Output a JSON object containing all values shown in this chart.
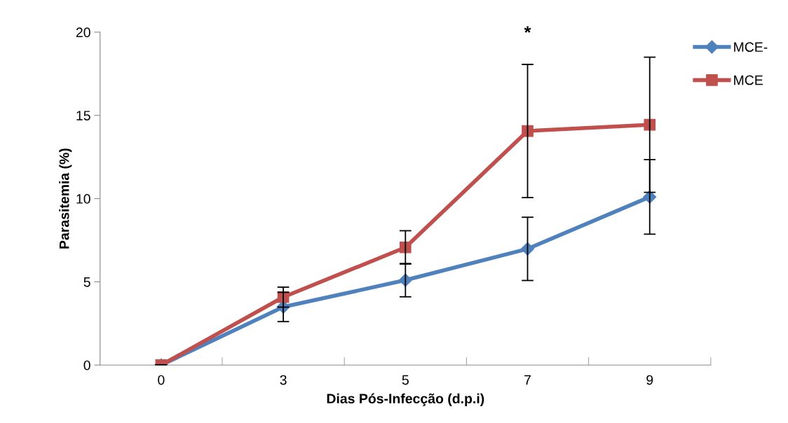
{
  "chart_data": {
    "type": "line",
    "xlabel": "Dias Pós-Infecção (d.p.i)",
    "ylabel": "Parasitemia (%)",
    "categories": [
      "0",
      "3",
      "5",
      "7",
      "9"
    ],
    "series": [
      {
        "name": "MCE-",
        "color": "#4f81bd",
        "marker": "diamond",
        "values": [
          0,
          3.49,
          5.1,
          6.98,
          10.1
        ],
        "errors": [
          0,
          0.88,
          1.0,
          1.9,
          2.24
        ]
      },
      {
        "name": "MCE",
        "color": "#c0504d",
        "marker": "square",
        "values": [
          0,
          4.08,
          7.07,
          14.06,
          14.44
        ],
        "errors": [
          0,
          0.6,
          1.0,
          4.0,
          4.06
        ]
      }
    ],
    "ylim": [
      0,
      20
    ],
    "yticks": [
      0,
      5,
      10,
      15,
      20
    ],
    "grid": false,
    "legend": "right",
    "annotations": [
      "*"
    ]
  }
}
